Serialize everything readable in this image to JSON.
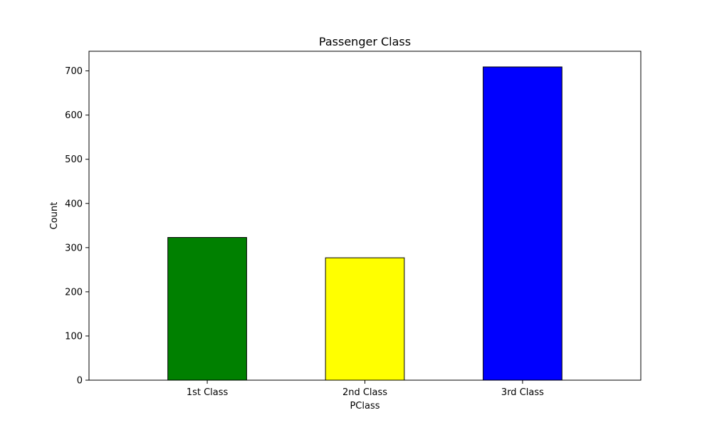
{
  "chart_data": {
    "type": "bar",
    "title": "Passenger Class",
    "xlabel": "PClass",
    "ylabel": "Count",
    "categories": [
      "1st Class",
      "2nd Class",
      "3rd Class"
    ],
    "values": [
      323,
      277,
      709
    ],
    "colors": [
      "#008000",
      "#ffff00",
      "#0000ff"
    ],
    "edge_color": "#000000",
    "ylim": [
      0,
      744.45
    ],
    "yticks": [
      0,
      100,
      200,
      300,
      400,
      500,
      600,
      700
    ],
    "grid": false,
    "legend": "none"
  }
}
